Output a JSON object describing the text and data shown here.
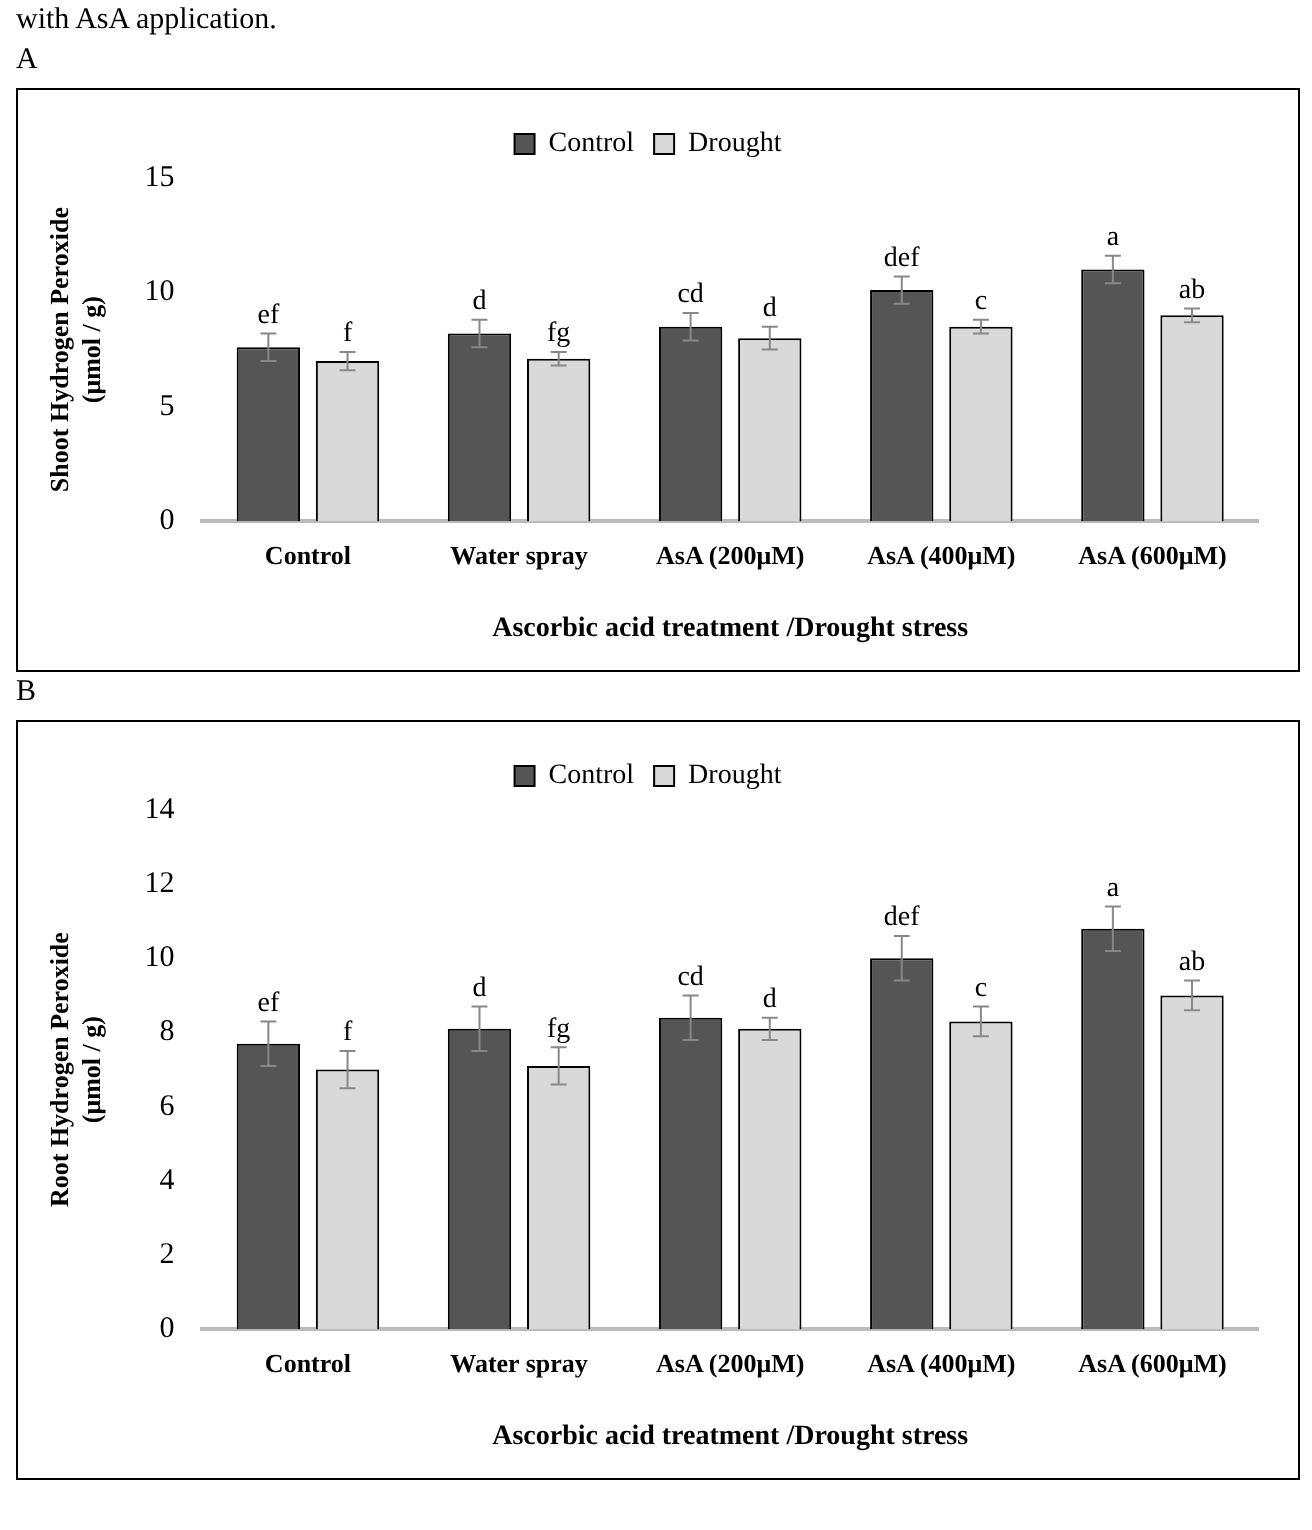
{
  "chart_data": [
    {
      "type": "bar",
      "title": "A",
      "xlabel": "Ascorbic acid treatment /Drought stress",
      "ylabel": "Shoot Hydrogen Peroxide (μmol / g)",
      "categories": [
        "Control",
        "Water spray",
        "AsA (200μM)",
        "AsA (400μM)",
        "AsA (600μM)"
      ],
      "series": [
        {
          "name": "Control",
          "color": "#555555",
          "values": [
            7.6,
            8.2,
            8.5,
            10.1,
            11.0
          ],
          "errors": [
            0.6,
            0.6,
            0.6,
            0.6,
            0.6
          ]
        },
        {
          "name": "Drought",
          "color": "#d9d9d9",
          "values": [
            7.0,
            7.1,
            8.0,
            8.5,
            9.0
          ],
          "errors": [
            0.4,
            0.3,
            0.5,
            0.3,
            0.3
          ]
        }
      ],
      "ylim": [
        0,
        15
      ],
      "yticks": [
        0,
        5,
        10,
        15
      ],
      "grid": false,
      "legend": "top",
      "annotations": [
        "with AsA application.",
        "ef",
        "f",
        "d",
        "fg",
        "cd",
        "d",
        "def",
        "c",
        "a",
        "ab"
      ]
    },
    {
      "type": "bar",
      "title": "B",
      "xlabel": "Ascorbic acid treatment /Drought stress",
      "ylabel": "Root Hydrogen Peroxide (μmol / g)",
      "categories": [
        "Control",
        "Water spray",
        "AsA (200μM)",
        "AsA (400μM)",
        "AsA (600μM)"
      ],
      "series": [
        {
          "name": "Control",
          "color": "#555555",
          "values": [
            7.7,
            8.1,
            8.4,
            10.0,
            10.8
          ],
          "errors": [
            0.6,
            0.6,
            0.6,
            0.6,
            0.6
          ]
        },
        {
          "name": "Drought",
          "color": "#d9d9d9",
          "values": [
            7.0,
            7.1,
            8.1,
            8.3,
            9.0
          ],
          "errors": [
            0.5,
            0.5,
            0.3,
            0.4,
            0.4
          ]
        }
      ],
      "ylim": [
        0,
        14
      ],
      "yticks": [
        0,
        2,
        4,
        6,
        8,
        10,
        12,
        14
      ],
      "grid": false,
      "legend": "top",
      "annotations": [
        "ef",
        "f",
        "d",
        "fg",
        "cd",
        "d",
        "def",
        "c",
        "a",
        "ab"
      ]
    }
  ]
}
